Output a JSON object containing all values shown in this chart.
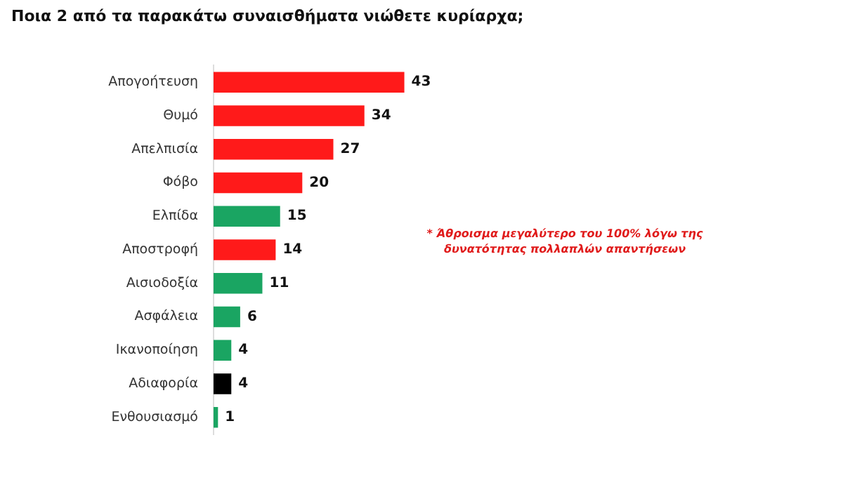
{
  "chart_data": {
    "type": "bar",
    "orientation": "horizontal",
    "title": "Ποια 2 από τα παρακάτω συναισθήματα νιώθετε κυρίαρχα;",
    "categories": [
      "Απογοήτευση",
      "Θυμό",
      "Απελπισία",
      "Φόβο",
      "Ελπίδα",
      "Αποστροφή",
      "Αισιοδοξία",
      "Ασφάλεια",
      "Ικανοποίηση",
      "Αδιαφορία",
      "Ενθουσιασμό"
    ],
    "values": [
      43,
      34,
      27,
      20,
      15,
      14,
      11,
      6,
      4,
      4,
      1
    ],
    "colors": [
      "#ff1a1a",
      "#ff1a1a",
      "#ff1a1a",
      "#ff1a1a",
      "#1aa562",
      "#ff1a1a",
      "#1aa562",
      "#1aa562",
      "#1aa562",
      "#000000",
      "#1aa562"
    ],
    "data_labels": true,
    "annotations": [
      "* Άθροισμα μεγαλύτερο του 100% λόγω της δυνατότητας πολλαπλών απαντήσεων"
    ]
  }
}
